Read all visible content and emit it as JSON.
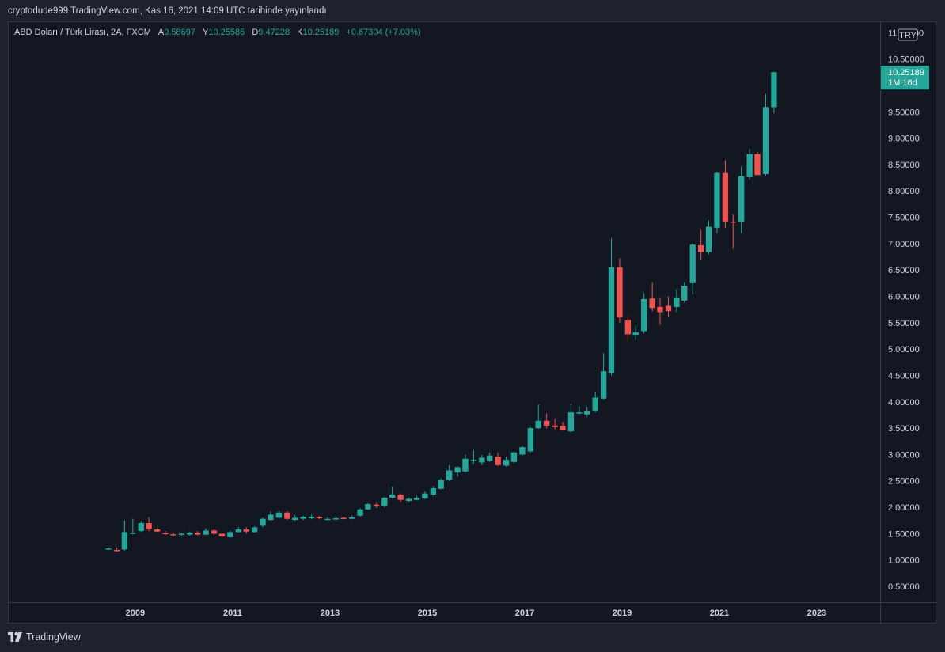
{
  "caption": "cryptodude999 TradingView.com, Kas 16, 2021 14:09 UTC tarihinde yayınlandı",
  "legend": {
    "symbol": "ABD Doları / Türk Lirası, 2A, FXCM",
    "open_label": "A",
    "open": "9.58697",
    "high_label": "Y",
    "high": "10.25585",
    "low_label": "D",
    "low": "9.47228",
    "close_label": "K",
    "close": "10.25189",
    "change": "+0.67304 (+7.03%)"
  },
  "brand": "TradingView",
  "colors": {
    "up": "#26a69a",
    "down": "#ef5350",
    "background": "#131722",
    "frame": "#1e222d"
  },
  "chart_data": {
    "type": "candlestick",
    "interval": "2 months",
    "currency_badge": "TRY",
    "last_price_label": "10.25189",
    "countdown_label": "1M 16d",
    "y_ticks": [
      "0.50000",
      "1.00000",
      "1.50000",
      "2.00000",
      "2.50000",
      "3.00000",
      "3.50000",
      "4.00000",
      "4.50000",
      "5.00000",
      "5.50000",
      "6.00000",
      "6.50000",
      "7.00000",
      "7.50000",
      "8.00000",
      "8.50000",
      "9.00000",
      "9.50000",
      "10.50000",
      "11.00000"
    ],
    "ylim": [
      0.2,
      11.2
    ],
    "x_ticks": [
      "2009",
      "2011",
      "2013",
      "2015",
      "2017",
      "2019",
      "2021",
      "2023"
    ],
    "x_tick_values": [
      2009,
      2011,
      2013,
      2015,
      2017,
      2019,
      2021,
      2023
    ],
    "xlim": [
      2006.4,
      2024.3
    ],
    "candles": [
      {
        "t": 2008.45,
        "o": 1.21,
        "h": 1.24,
        "l": 1.19,
        "c": 1.22
      },
      {
        "t": 2008.62,
        "o": 1.19,
        "h": 1.24,
        "l": 1.16,
        "c": 1.18
      },
      {
        "t": 2008.78,
        "o": 1.2,
        "h": 1.75,
        "l": 1.18,
        "c": 1.53
      },
      {
        "t": 2008.95,
        "o": 1.52,
        "h": 1.78,
        "l": 1.48,
        "c": 1.52
      },
      {
        "t": 2009.12,
        "o": 1.55,
        "h": 1.74,
        "l": 1.53,
        "c": 1.7
      },
      {
        "t": 2009.28,
        "o": 1.7,
        "h": 1.81,
        "l": 1.55,
        "c": 1.58
      },
      {
        "t": 2009.45,
        "o": 1.58,
        "h": 1.6,
        "l": 1.53,
        "c": 1.54
      },
      {
        "t": 2009.62,
        "o": 1.52,
        "h": 1.55,
        "l": 1.47,
        "c": 1.49
      },
      {
        "t": 2009.78,
        "o": 1.49,
        "h": 1.52,
        "l": 1.45,
        "c": 1.48
      },
      {
        "t": 2009.95,
        "o": 1.48,
        "h": 1.52,
        "l": 1.46,
        "c": 1.5
      },
      {
        "t": 2010.12,
        "o": 1.48,
        "h": 1.54,
        "l": 1.46,
        "c": 1.52
      },
      {
        "t": 2010.28,
        "o": 1.52,
        "h": 1.55,
        "l": 1.47,
        "c": 1.48
      },
      {
        "t": 2010.45,
        "o": 1.48,
        "h": 1.6,
        "l": 1.47,
        "c": 1.56
      },
      {
        "t": 2010.62,
        "o": 1.56,
        "h": 1.58,
        "l": 1.48,
        "c": 1.5
      },
      {
        "t": 2010.78,
        "o": 1.5,
        "h": 1.52,
        "l": 1.42,
        "c": 1.45
      },
      {
        "t": 2010.95,
        "o": 1.43,
        "h": 1.55,
        "l": 1.42,
        "c": 1.53
      },
      {
        "t": 2011.12,
        "o": 1.53,
        "h": 1.62,
        "l": 1.52,
        "c": 1.58
      },
      {
        "t": 2011.28,
        "o": 1.58,
        "h": 1.62,
        "l": 1.5,
        "c": 1.54
      },
      {
        "t": 2011.45,
        "o": 1.53,
        "h": 1.64,
        "l": 1.52,
        "c": 1.62
      },
      {
        "t": 2011.62,
        "o": 1.65,
        "h": 1.8,
        "l": 1.62,
        "c": 1.78
      },
      {
        "t": 2011.78,
        "o": 1.76,
        "h": 1.92,
        "l": 1.74,
        "c": 1.86
      },
      {
        "t": 2011.95,
        "o": 1.8,
        "h": 1.94,
        "l": 1.78,
        "c": 1.9
      },
      {
        "t": 2012.12,
        "o": 1.9,
        "h": 1.92,
        "l": 1.76,
        "c": 1.78
      },
      {
        "t": 2012.28,
        "o": 1.76,
        "h": 1.85,
        "l": 1.74,
        "c": 1.8
      },
      {
        "t": 2012.45,
        "o": 1.78,
        "h": 1.84,
        "l": 1.76,
        "c": 1.82
      },
      {
        "t": 2012.62,
        "o": 1.79,
        "h": 1.86,
        "l": 1.77,
        "c": 1.82
      },
      {
        "t": 2012.78,
        "o": 1.82,
        "h": 1.83,
        "l": 1.77,
        "c": 1.79
      },
      {
        "t": 2012.95,
        "o": 1.78,
        "h": 1.81,
        "l": 1.76,
        "c": 1.78
      },
      {
        "t": 2013.12,
        "o": 1.77,
        "h": 1.82,
        "l": 1.76,
        "c": 1.79
      },
      {
        "t": 2013.28,
        "o": 1.8,
        "h": 1.82,
        "l": 1.77,
        "c": 1.78
      },
      {
        "t": 2013.45,
        "o": 1.78,
        "h": 1.84,
        "l": 1.77,
        "c": 1.81
      },
      {
        "t": 2013.62,
        "o": 1.84,
        "h": 1.98,
        "l": 1.82,
        "c": 1.96
      },
      {
        "t": 2013.78,
        "o": 1.96,
        "h": 2.08,
        "l": 1.95,
        "c": 2.06
      },
      {
        "t": 2013.95,
        "o": 2.05,
        "h": 2.08,
        "l": 1.99,
        "c": 2.02
      },
      {
        "t": 2014.12,
        "o": 2.02,
        "h": 2.2,
        "l": 2.0,
        "c": 2.18
      },
      {
        "t": 2014.28,
        "o": 2.18,
        "h": 2.39,
        "l": 2.16,
        "c": 2.24
      },
      {
        "t": 2014.45,
        "o": 2.24,
        "h": 2.26,
        "l": 2.1,
        "c": 2.14
      },
      {
        "t": 2014.62,
        "o": 2.12,
        "h": 2.18,
        "l": 2.1,
        "c": 2.16
      },
      {
        "t": 2014.78,
        "o": 2.14,
        "h": 2.22,
        "l": 2.13,
        "c": 2.18
      },
      {
        "t": 2014.95,
        "o": 2.17,
        "h": 2.3,
        "l": 2.15,
        "c": 2.26
      },
      {
        "t": 2015.12,
        "o": 2.24,
        "h": 2.4,
        "l": 2.22,
        "c": 2.36
      },
      {
        "t": 2015.28,
        "o": 2.35,
        "h": 2.55,
        "l": 2.34,
        "c": 2.52
      },
      {
        "t": 2015.45,
        "o": 2.52,
        "h": 2.8,
        "l": 2.5,
        "c": 2.7
      },
      {
        "t": 2015.62,
        "o": 2.66,
        "h": 2.78,
        "l": 2.58,
        "c": 2.76
      },
      {
        "t": 2015.78,
        "o": 2.68,
        "h": 3.0,
        "l": 2.66,
        "c": 2.92
      },
      {
        "t": 2015.95,
        "o": 2.88,
        "h": 3.08,
        "l": 2.82,
        "c": 2.9
      },
      {
        "t": 2016.12,
        "o": 2.85,
        "h": 2.99,
        "l": 2.8,
        "c": 2.94
      },
      {
        "t": 2016.28,
        "o": 2.88,
        "h": 3.04,
        "l": 2.86,
        "c": 2.98
      },
      {
        "t": 2016.45,
        "o": 2.96,
        "h": 3.03,
        "l": 2.78,
        "c": 2.8
      },
      {
        "t": 2016.62,
        "o": 2.79,
        "h": 2.96,
        "l": 2.77,
        "c": 2.9
      },
      {
        "t": 2016.78,
        "o": 2.86,
        "h": 3.06,
        "l": 2.84,
        "c": 3.04
      },
      {
        "t": 2016.95,
        "o": 3.0,
        "h": 3.16,
        "l": 2.98,
        "c": 3.14
      },
      {
        "t": 2017.12,
        "o": 3.06,
        "h": 3.52,
        "l": 3.04,
        "c": 3.5
      },
      {
        "t": 2017.28,
        "o": 3.5,
        "h": 3.95,
        "l": 3.48,
        "c": 3.64
      },
      {
        "t": 2017.45,
        "o": 3.64,
        "h": 3.78,
        "l": 3.5,
        "c": 3.54
      },
      {
        "t": 2017.62,
        "o": 3.55,
        "h": 3.68,
        "l": 3.48,
        "c": 3.52
      },
      {
        "t": 2017.78,
        "o": 3.54,
        "h": 3.62,
        "l": 3.45,
        "c": 3.46
      },
      {
        "t": 2017.95,
        "o": 3.44,
        "h": 3.96,
        "l": 3.42,
        "c": 3.8
      },
      {
        "t": 2018.12,
        "o": 3.78,
        "h": 3.92,
        "l": 3.76,
        "c": 3.8
      },
      {
        "t": 2018.28,
        "o": 3.76,
        "h": 3.9,
        "l": 3.72,
        "c": 3.82
      },
      {
        "t": 2018.45,
        "o": 3.82,
        "h": 4.18,
        "l": 3.8,
        "c": 4.08
      },
      {
        "t": 2018.62,
        "o": 4.06,
        "h": 4.92,
        "l": 4.04,
        "c": 4.58
      },
      {
        "t": 2018.78,
        "o": 4.55,
        "h": 7.1,
        "l": 4.5,
        "c": 6.55
      },
      {
        "t": 2018.95,
        "o": 6.55,
        "h": 6.72,
        "l": 5.5,
        "c": 5.6
      },
      {
        "t": 2019.12,
        "o": 5.55,
        "h": 5.62,
        "l": 5.14,
        "c": 5.28
      },
      {
        "t": 2019.28,
        "o": 5.26,
        "h": 5.45,
        "l": 5.16,
        "c": 5.32
      },
      {
        "t": 2019.45,
        "o": 5.34,
        "h": 6.06,
        "l": 5.3,
        "c": 5.95
      },
      {
        "t": 2019.62,
        "o": 5.96,
        "h": 6.26,
        "l": 5.72,
        "c": 5.78
      },
      {
        "t": 2019.78,
        "o": 5.8,
        "h": 5.98,
        "l": 5.46,
        "c": 5.7
      },
      {
        "t": 2019.95,
        "o": 5.82,
        "h": 6.0,
        "l": 5.62,
        "c": 5.72
      },
      {
        "t": 2020.12,
        "o": 5.8,
        "h": 6.14,
        "l": 5.7,
        "c": 5.98
      },
      {
        "t": 2020.28,
        "o": 5.92,
        "h": 6.26,
        "l": 5.88,
        "c": 6.2
      },
      {
        "t": 2020.45,
        "o": 6.25,
        "h": 7.0,
        "l": 6.04,
        "c": 6.98
      },
      {
        "t": 2020.62,
        "o": 6.97,
        "h": 7.26,
        "l": 6.7,
        "c": 6.84
      },
      {
        "t": 2020.78,
        "o": 6.84,
        "h": 7.44,
        "l": 6.8,
        "c": 7.32
      },
      {
        "t": 2020.95,
        "o": 7.3,
        "h": 8.36,
        "l": 7.2,
        "c": 8.34
      },
      {
        "t": 2021.12,
        "o": 8.34,
        "h": 8.58,
        "l": 7.3,
        "c": 7.42
      },
      {
        "t": 2021.28,
        "o": 7.42,
        "h": 7.56,
        "l": 6.9,
        "c": 7.4
      },
      {
        "t": 2021.45,
        "o": 7.42,
        "h": 8.46,
        "l": 7.2,
        "c": 8.28
      },
      {
        "t": 2021.62,
        "o": 8.26,
        "h": 8.8,
        "l": 8.22,
        "c": 8.7
      },
      {
        "t": 2021.78,
        "o": 8.7,
        "h": 8.74,
        "l": 8.3,
        "c": 8.3
      },
      {
        "t": 2021.95,
        "o": 8.32,
        "h": 9.84,
        "l": 8.28,
        "c": 9.59
      },
      {
        "t": 2022.12,
        "o": 9.58697,
        "h": 10.25585,
        "l": 9.47228,
        "c": 10.25189
      }
    ]
  }
}
